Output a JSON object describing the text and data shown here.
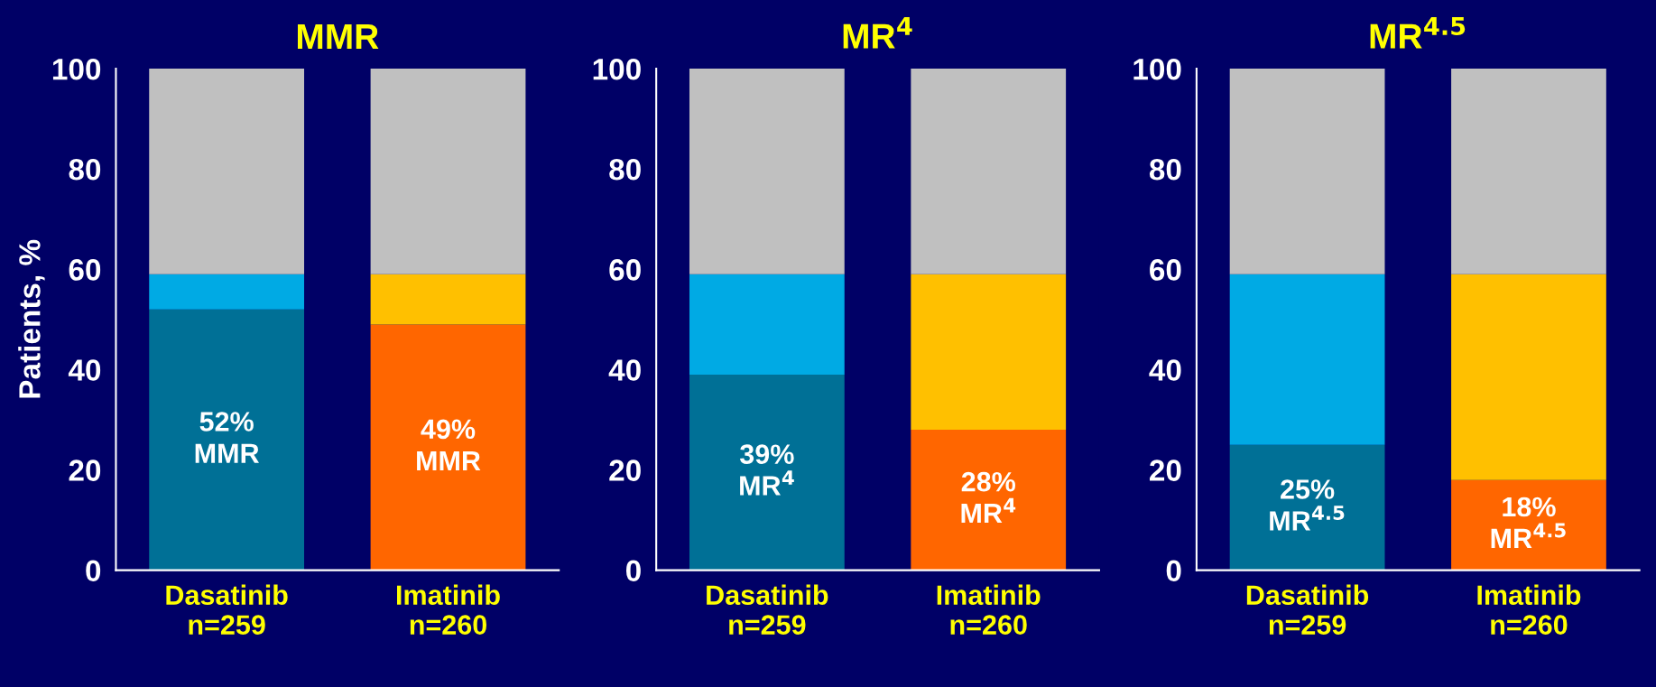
{
  "chart_data": [
    {
      "type": "bar",
      "title": "MMR",
      "ylabel": "Patients, %",
      "categories": [
        "Dasatinib\nn=259",
        "Imatinib\nn=260"
      ],
      "stacked": true,
      "ylim": [
        0,
        100
      ],
      "yticks": [
        0,
        20,
        40,
        60,
        80,
        100
      ],
      "grid": false,
      "series": [
        {
          "colors": [
            "#007096",
            "#ff6600"
          ],
          "values": [
            52,
            49
          ],
          "value_labels": [
            "52%\nMMR",
            "49%\nMMR"
          ]
        },
        {
          "colors": [
            "#00aae4",
            "#ffc000"
          ],
          "values": [
            7,
            10
          ]
        },
        {
          "colors": [
            "#c0c0c0",
            "#c0c0c0"
          ],
          "values": [
            41,
            41
          ]
        }
      ]
    },
    {
      "type": "bar",
      "title": "MR$^{4}$",
      "categories": [
        "Dasatinib\nn=259",
        "Imatinib\nn=260"
      ],
      "stacked": true,
      "ylim": [
        0,
        100
      ],
      "yticks": [
        0,
        20,
        40,
        60,
        80,
        100
      ],
      "grid": false,
      "series": [
        {
          "colors": [
            "#007096",
            "#ff6600"
          ],
          "values": [
            39,
            28
          ],
          "value_labels": [
            "39%\nMR$^{4}$",
            "28%\nMR$^{4}$"
          ]
        },
        {
          "colors": [
            "#00aae4",
            "#ffc000"
          ],
          "values": [
            20,
            31
          ]
        },
        {
          "colors": [
            "#c0c0c0",
            "#c0c0c0"
          ],
          "values": [
            41,
            41
          ]
        }
      ]
    },
    {
      "type": "bar",
      "title": "MR$^{4.5}$",
      "categories": [
        "Dasatinib\nn=259",
        "Imatinib\nn=260"
      ],
      "stacked": true,
      "ylim": [
        0,
        100
      ],
      "yticks": [
        0,
        20,
        40,
        60,
        80,
        100
      ],
      "grid": false,
      "series": [
        {
          "colors": [
            "#007096",
            "#ff6600"
          ],
          "values": [
            25,
            18
          ],
          "value_labels": [
            "25%\nMR$^{4.5}$",
            "18%\nMR$^{4.5}$"
          ]
        },
        {
          "colors": [
            "#00aae4",
            "#ffc000"
          ],
          "values": [
            34,
            41
          ]
        },
        {
          "colors": [
            "#c0c0c0",
            "#c0c0c0"
          ],
          "values": [
            41,
            41
          ]
        }
      ]
    }
  ]
}
